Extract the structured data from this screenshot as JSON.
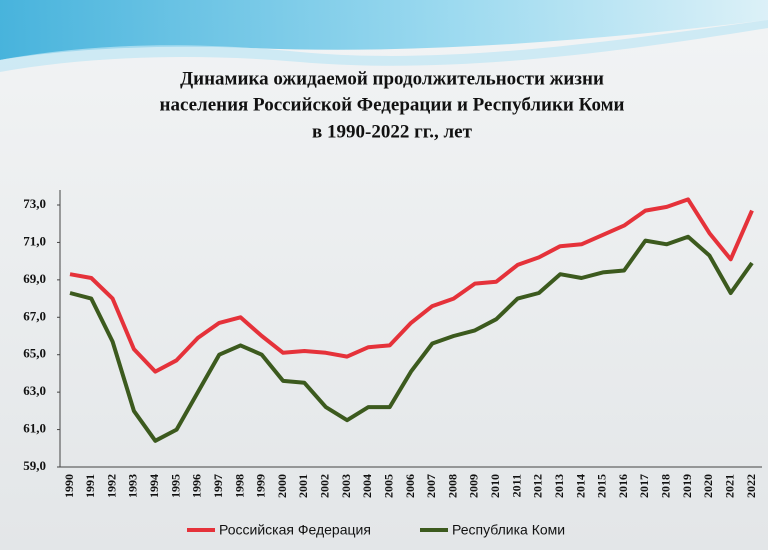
{
  "chart_data": {
    "type": "line",
    "title": [
      "Динамика ожидаемой продолжительности жизни",
      "населения Российской Федерации и Республики Коми",
      "в 1990-2022 гг., лет"
    ],
    "categories": [
      "1990",
      "1991",
      "1992",
      "1993",
      "1994",
      "1995",
      "1996",
      "1997",
      "1998",
      "1999",
      "2000",
      "2001",
      "2002",
      "2003",
      "2004",
      "2005",
      "2006",
      "2007",
      "2008",
      "2009",
      "2010",
      "2011",
      "2012",
      "2013",
      "2014",
      "2015",
      "2016",
      "2017",
      "2018",
      "2019",
      "2020",
      "2021",
      "2022"
    ],
    "series": [
      {
        "name": "Российская Федерация",
        "color": "#e5323a",
        "values": [
          69.3,
          69.1,
          68.0,
          65.3,
          64.1,
          64.7,
          65.9,
          66.7,
          67.0,
          66.0,
          65.1,
          65.2,
          65.1,
          64.9,
          65.4,
          65.5,
          66.7,
          67.6,
          68.0,
          68.8,
          68.9,
          69.8,
          70.2,
          70.8,
          70.9,
          71.4,
          71.9,
          72.7,
          72.9,
          73.3,
          71.5,
          70.1,
          72.7
        ]
      },
      {
        "name": "Республика Коми",
        "color": "#3c5a1e",
        "values": [
          68.3,
          68.0,
          65.7,
          62.0,
          60.4,
          61.0,
          63.0,
          65.0,
          65.5,
          65.0,
          63.6,
          63.5,
          62.2,
          61.5,
          62.2,
          62.2,
          64.1,
          65.6,
          66.0,
          66.3,
          66.9,
          68.0,
          68.3,
          69.3,
          69.1,
          69.4,
          69.5,
          71.1,
          70.9,
          71.3,
          70.3,
          68.3,
          69.9
        ]
      }
    ],
    "ylim": [
      59,
      73
    ],
    "yticks": [
      {
        "value": 59,
        "label": "59,0"
      },
      {
        "value": 61,
        "label": "61,0"
      },
      {
        "value": 63,
        "label": "63,0"
      },
      {
        "value": 65,
        "label": "65,0"
      },
      {
        "value": 67,
        "label": "67,0"
      },
      {
        "value": 69,
        "label": "69,0"
      },
      {
        "value": 71,
        "label": "71,0"
      },
      {
        "value": 73,
        "label": "73,0"
      }
    ],
    "grid": false,
    "legend": "bottom"
  }
}
